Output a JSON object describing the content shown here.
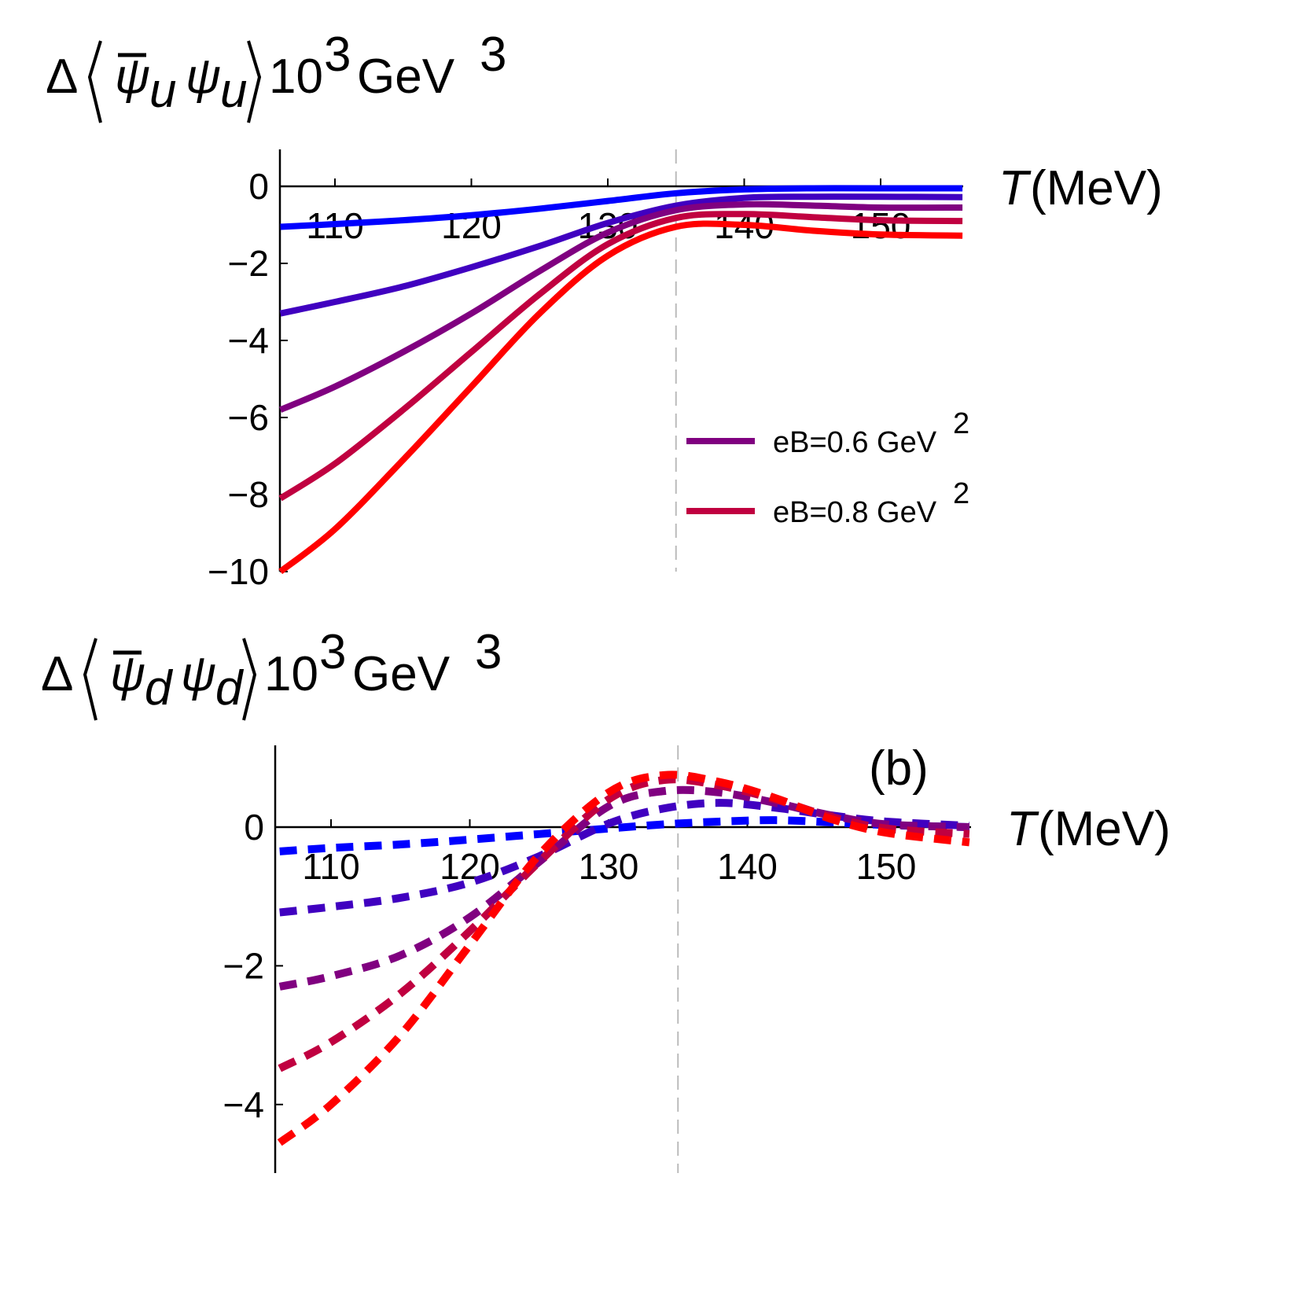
{
  "chart_data": [
    {
      "type": "line",
      "ylabel": {
        "prefix": "Δ",
        "field": "ψ",
        "flavor": "u",
        "factor": "10",
        "factor_exp": "3",
        "unit": "GeV",
        "unit_exp": "3"
      },
      "xlabel": {
        "var": "T",
        "unit": "(MeV)"
      },
      "xlim": [
        106,
        156
      ],
      "ylim": [
        -10,
        1
      ],
      "xticks": [
        110,
        120,
        130,
        140,
        150
      ],
      "yticks": [
        0,
        -2,
        -4,
        -6,
        -8,
        -10
      ],
      "ytick_labels": [
        "0",
        "−2",
        "−4",
        "−6",
        "−8",
        "−10"
      ],
      "vline": 135,
      "line_style": "solid",
      "x": [
        106,
        110,
        115,
        120,
        125,
        130,
        135,
        140,
        145,
        150,
        156
      ],
      "series": [
        {
          "color": "#0000ff",
          "values": [
            -1.05,
            -0.98,
            -0.88,
            -0.75,
            -0.58,
            -0.38,
            -0.18,
            -0.08,
            -0.05,
            -0.05,
            -0.05
          ]
        },
        {
          "color": "#4000c0",
          "values": [
            -3.3,
            -3.0,
            -2.6,
            -2.1,
            -1.55,
            -0.95,
            -0.5,
            -0.3,
            -0.27,
            -0.27,
            -0.28
          ]
        },
        {
          "name": "eB=0.6 GeV²",
          "color": "#800080",
          "values": [
            -5.8,
            -5.2,
            -4.3,
            -3.3,
            -2.2,
            -1.2,
            -0.62,
            -0.47,
            -0.5,
            -0.55,
            -0.55
          ]
        },
        {
          "name": "eB=0.8 GeV²",
          "color": "#c00040",
          "values": [
            -8.1,
            -7.2,
            -5.8,
            -4.3,
            -2.8,
            -1.5,
            -0.82,
            -0.72,
            -0.8,
            -0.88,
            -0.9
          ]
        },
        {
          "color": "#ff0000",
          "values": [
            -10.0,
            -8.9,
            -7.1,
            -5.2,
            -3.3,
            -1.8,
            -1.05,
            -1.0,
            -1.15,
            -1.25,
            -1.28
          ]
        }
      ],
      "legend": {
        "placement": "right",
        "entries": [
          {
            "label": "eB=0.6 GeV",
            "exp": "2",
            "color": "#800080"
          },
          {
            "label": "eB=0.8 GeV",
            "exp": "2",
            "color": "#c00040"
          }
        ]
      }
    },
    {
      "type": "line",
      "panel_label": "(b)",
      "ylabel": {
        "prefix": "Δ",
        "field": "ψ",
        "flavor": "d",
        "factor": "10",
        "factor_exp": "3",
        "unit": "GeV",
        "unit_exp": "3"
      },
      "xlabel": {
        "var": "T",
        "unit": "(MeV)"
      },
      "xlim": [
        106,
        156
      ],
      "ylim": [
        -5,
        1.2
      ],
      "xticks": [
        110,
        120,
        130,
        140,
        150
      ],
      "yticks": [
        0,
        -2,
        -4
      ],
      "ytick_labels": [
        "0",
        "−2",
        "−4"
      ],
      "vline": 135,
      "line_style": "dashed",
      "x": [
        106.3,
        110,
        115,
        120,
        125,
        130,
        134,
        138,
        142,
        146,
        150,
        156
      ],
      "series": [
        {
          "color": "#0000ff",
          "values": [
            -0.35,
            -0.3,
            -0.25,
            -0.18,
            -0.1,
            -0.02,
            0.04,
            0.08,
            0.1,
            0.07,
            0.03,
            0.0
          ]
        },
        {
          "color": "#4000c0",
          "values": [
            -1.23,
            -1.15,
            -1.02,
            -0.8,
            -0.42,
            0.05,
            0.27,
            0.35,
            0.28,
            0.17,
            0.08,
            0.02
          ]
        },
        {
          "color": "#800080",
          "values": [
            -2.3,
            -2.15,
            -1.85,
            -1.3,
            -0.5,
            0.3,
            0.52,
            0.5,
            0.35,
            0.17,
            0.04,
            0.0
          ]
        },
        {
          "color": "#c00040",
          "values": [
            -3.48,
            -3.1,
            -2.4,
            -1.5,
            -0.5,
            0.4,
            0.68,
            0.6,
            0.4,
            0.15,
            -0.02,
            -0.1
          ]
        },
        {
          "color": "#ff0000",
          "values": [
            -4.55,
            -4.0,
            -3.0,
            -1.7,
            -0.4,
            0.5,
            0.75,
            0.65,
            0.42,
            0.12,
            -0.08,
            -0.22
          ]
        }
      ]
    }
  ]
}
